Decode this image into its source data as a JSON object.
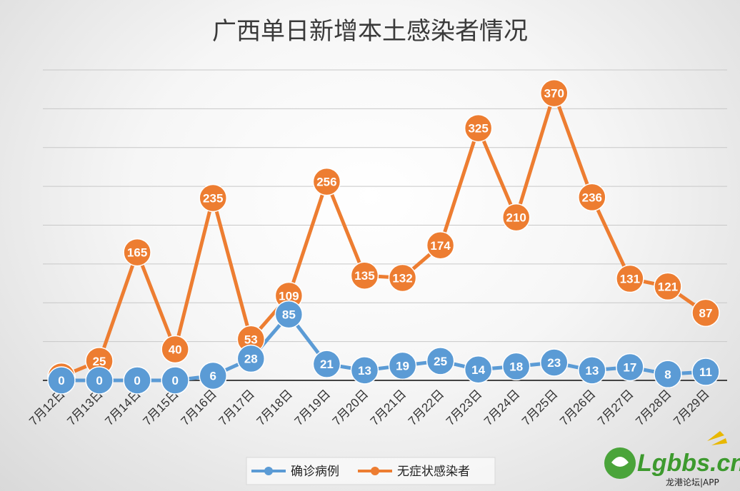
{
  "chart_data": {
    "type": "line",
    "title": "广西单日新增本土感染者情况",
    "categories": [
      "7月12日",
      "7月13日",
      "7月14日",
      "7月15日",
      "7月16日",
      "7月17日",
      "7月18日",
      "7月19日",
      "7月20日",
      "7月21日",
      "7月22日",
      "7月23日",
      "7月24日",
      "7月25日",
      "7月26日",
      "7月27日",
      "7月28日",
      "7月29日"
    ],
    "series": [
      {
        "name": "确诊病例",
        "color": "#5b9bd5",
        "values": [
          0,
          0,
          0,
          0,
          6,
          28,
          85,
          21,
          13,
          19,
          25,
          14,
          18,
          23,
          13,
          17,
          8,
          11
        ]
      },
      {
        "name": "无症状感染者",
        "color": "#ed7d31",
        "values": [
          5,
          25,
          165,
          40,
          235,
          53,
          109,
          256,
          135,
          132,
          174,
          325,
          210,
          370,
          236,
          131,
          121,
          87
        ]
      }
    ],
    "ylim": [
      0,
      400
    ],
    "y_grid_step": 50,
    "grid": true,
    "legend_position": "bottom"
  },
  "watermark": {
    "text": "Lgbbs.cn",
    "subtitle": "龙港论坛|APP"
  }
}
